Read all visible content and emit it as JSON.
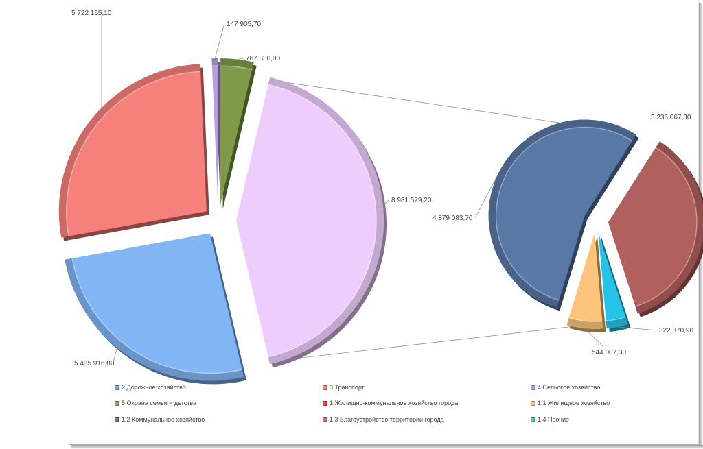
{
  "chart_data": {
    "type": "pie",
    "subtype": "bar-of-pie (pie of pie)",
    "main_pie": [
      {
        "name": "2 Дорожное хозяйство",
        "value": 5435916.8,
        "label": "5 435 916,80",
        "color": "#81b5f4"
      },
      {
        "name": "3 Транспорт",
        "value": 5722165.1,
        "label": "5 722 165,10",
        "color": "#f6807b"
      },
      {
        "name": "4 Сельское хозяйство",
        "value": 147905.7,
        "label": "147 905,70",
        "color": "#b89cdf"
      },
      {
        "name": "5 Охрана семьи и детства",
        "value": 767330.0,
        "label": "767 330,00",
        "color": "#7f9a48"
      },
      {
        "name": "1 Жилищно-коммунальное  хозяйство города",
        "value": 8981529.2,
        "label": "8 981 529,20",
        "color": "#eecdfc"
      }
    ],
    "secondary_pie": [
      {
        "name": "1.1 Жилищное хозяйство",
        "value": 544007.3,
        "label": "544 007,30",
        "color": "#fbc47a"
      },
      {
        "name": "1.2 Коммунальное хозяйство",
        "value": 4879083.7,
        "label": "4 879 083,70",
        "color": "#5878a6"
      },
      {
        "name": "1.3 Благоустройство территории города",
        "value": 3236067.3,
        "label": "3 236 067,30",
        "color": "#b0605e"
      },
      {
        "name": "1.4 Прочие",
        "value": 322370.9,
        "label": "322 370,90",
        "color": "#27c3e6"
      }
    ],
    "legend": [
      {
        "label": "2 Дорожное хозяйство",
        "color": "#4f81bd"
      },
      {
        "label": "3 Транспорт",
        "color": "#e0605c"
      },
      {
        "label": "4 Сельское хозяйство",
        "color": "#9a7fcf"
      },
      {
        "label": "5 Охрана семьи и детства",
        "color": "#6b8b2f"
      },
      {
        "label": "1 Жилищно-коммунальное  хозяйство города",
        "color": "#e01010"
      },
      {
        "label": "1.1 Жилищное хозяйство",
        "color": "#f9a54d"
      },
      {
        "label": "1.2 Коммунальное хозяйство",
        "color": "#2e4a78"
      },
      {
        "label": "1.3 Благоустройство территории города",
        "color": "#a34a48"
      },
      {
        "label": "1.4 Прочие",
        "color": "#1aa5a0"
      }
    ],
    "legend_position": "bottom",
    "style": "3d-exploded"
  }
}
